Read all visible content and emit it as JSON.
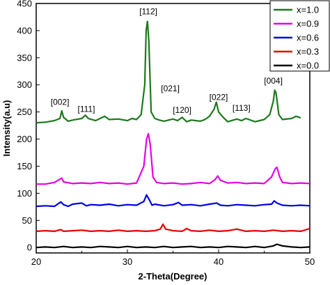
{
  "chart_data": {
    "type": "line",
    "xlabel": "2-Theta(Degree)",
    "ylabel": "Intensity(a.u)",
    "xlim": [
      20,
      50
    ],
    "ylim": [
      -10,
      450
    ],
    "xticks": [
      20,
      30,
      40,
      50
    ],
    "yticks": [
      0,
      50,
      100,
      150,
      200,
      250,
      300,
      350,
      400,
      450
    ],
    "grid": false,
    "legend_position": "top-right",
    "series": [
      {
        "name": "x=1.0",
        "color": "#1a7a1a",
        "x": [
          20,
          21,
          22,
          22.6,
          22.8,
          23.0,
          23.5,
          24,
          25,
          25.4,
          25.7,
          26.5,
          27,
          27.5,
          28,
          29,
          30,
          30.5,
          31,
          31.5,
          31.9,
          32.05,
          32.2,
          32.35,
          32.6,
          33,
          33.5,
          34,
          35,
          35.5,
          36,
          36.5,
          37,
          38,
          38.5,
          39,
          39.5,
          39.75,
          40,
          40.5,
          41,
          42,
          42.5,
          43,
          44,
          45,
          45.6,
          46,
          46.15,
          46.3,
          46.6,
          47,
          48,
          48.5,
          49
        ],
        "values": [
          230,
          231,
          234,
          238,
          252,
          240,
          233,
          235,
          238,
          244,
          238,
          234,
          238,
          242,
          236,
          237,
          234,
          238,
          236,
          245,
          300,
          400,
          417,
          380,
          250,
          238,
          235,
          233,
          237,
          234,
          240,
          232,
          235,
          233,
          236,
          242,
          255,
          268,
          250,
          240,
          232,
          237,
          234,
          238,
          232,
          236,
          245,
          270,
          290,
          285,
          245,
          236,
          238,
          242,
          239
        ]
      },
      {
        "name": "x=0.9",
        "color": "#e600e6",
        "x": [
          20,
          21,
          22,
          22.6,
          22.8,
          23.0,
          24,
          25,
          26,
          27,
          28,
          29,
          30,
          31,
          31.8,
          32.1,
          32.3,
          32.5,
          32.8,
          33.2,
          34,
          35,
          36,
          37,
          38,
          39,
          39.6,
          39.9,
          40.2,
          41,
          42,
          43,
          44,
          45,
          45.8,
          46.2,
          46.4,
          46.7,
          47,
          48,
          49,
          50
        ],
        "values": [
          117,
          117,
          120,
          126,
          128,
          121,
          118,
          119,
          118,
          120,
          118,
          119,
          117,
          119,
          150,
          200,
          210,
          190,
          130,
          120,
          118,
          119,
          117,
          118,
          120,
          118,
          125,
          132,
          124,
          119,
          120,
          118,
          119,
          118,
          130,
          145,
          148,
          130,
          120,
          118,
          119,
          118
        ]
      },
      {
        "name": "x=0.6",
        "color": "#0000e6",
        "x": [
          20,
          21,
          22,
          22.7,
          23,
          23.5,
          24,
          25,
          25.5,
          26,
          27,
          28,
          29,
          30,
          31,
          31.8,
          32.1,
          32.4,
          32.7,
          33,
          34,
          35,
          35.6,
          36,
          37,
          38,
          39,
          39.8,
          40.2,
          41,
          42,
          43,
          44,
          45,
          45.8,
          46.1,
          46.4,
          47,
          48,
          49,
          50
        ],
        "values": [
          76,
          77,
          76,
          84,
          79,
          76,
          80,
          82,
          77,
          79,
          78,
          80,
          77,
          79,
          78,
          85,
          97,
          88,
          78,
          80,
          77,
          79,
          83,
          78,
          79,
          77,
          80,
          82,
          78,
          77,
          79,
          78,
          77,
          79,
          80,
          86,
          82,
          78,
          77,
          78,
          77
        ]
      },
      {
        "name": "x=0.3",
        "color": "#e60000",
        "x": [
          20,
          21,
          22,
          22.7,
          23,
          24,
          25,
          26,
          27,
          28,
          29,
          30,
          31,
          32,
          33,
          33.6,
          33.9,
          34.2,
          35,
          36,
          36.5,
          37,
          38,
          39,
          40,
          41,
          42,
          43,
          44,
          45,
          46,
          47,
          48,
          49,
          50
        ],
        "values": [
          30,
          31,
          30,
          33,
          30,
          31,
          32,
          30,
          31,
          30,
          32,
          30,
          31,
          30,
          31,
          34,
          43,
          34,
          31,
          30,
          35,
          31,
          30,
          32,
          30,
          31,
          34,
          30,
          31,
          30,
          32,
          30,
          31,
          30,
          35
        ]
      },
      {
        "name": "x=0.0",
        "color": "#000000",
        "x": [
          20,
          21,
          22,
          23,
          24,
          25,
          26,
          27,
          28,
          29,
          30,
          31,
          32,
          33,
          34,
          35,
          36,
          37,
          38,
          39,
          40,
          41,
          42,
          43,
          44,
          45,
          46,
          46.4,
          47,
          48,
          49,
          50
        ],
        "values": [
          0,
          1,
          0,
          2,
          0,
          1,
          0,
          2,
          1,
          0,
          2,
          0,
          1,
          0,
          2,
          0,
          1,
          2,
          0,
          1,
          0,
          2,
          1,
          0,
          2,
          0,
          3,
          6,
          3,
          1,
          0,
          1
        ]
      }
    ],
    "annotations": [
      {
        "text": "[002]",
        "x": 22.6,
        "y": 263
      },
      {
        "text": "[111]",
        "x": 25.5,
        "y": 250
      },
      {
        "text": "[112]",
        "x": 32.3,
        "y": 430
      },
      {
        "text": "[021]",
        "x": 34.7,
        "y": 288
      },
      {
        "text": "[120]",
        "x": 36.0,
        "y": 248
      },
      {
        "text": "[022]",
        "x": 40.0,
        "y": 272
      },
      {
        "text": "[113]",
        "x": 42.5,
        "y": 252
      },
      {
        "text": "[004]",
        "x": 46.0,
        "y": 302
      }
    ]
  }
}
